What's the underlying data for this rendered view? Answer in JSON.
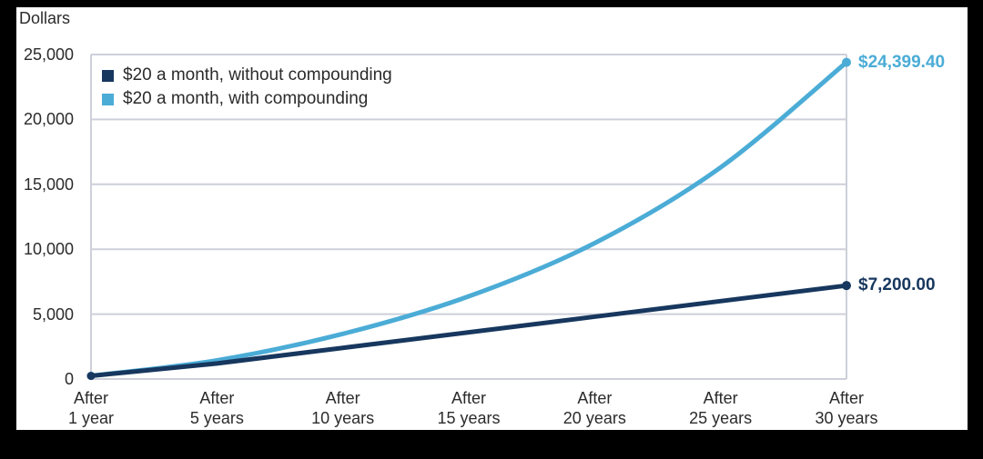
{
  "frame": {
    "background_color": "#000000",
    "panel_background_color": "#ffffff"
  },
  "chart_data": {
    "type": "line",
    "title": "",
    "y_axis_unit_label": "Dollars",
    "xlabel": "",
    "ylabel": "Dollars",
    "ylim": [
      0,
      25000
    ],
    "y_tick_labels": [
      "25,000",
      "20,000",
      "15,000",
      "10,000",
      "5,000",
      "0"
    ],
    "y_tick_values": [
      25000,
      20000,
      15000,
      10000,
      5000,
      0
    ],
    "categories": [
      "After\n1 year",
      "After\n5 years",
      "After\n10 years",
      "After\n15 years",
      "After\n20 years",
      "After\n25 years",
      "After\n30 years"
    ],
    "grid": "horizontal",
    "grid_color": "#cdd0da",
    "axis_text_color": "#2b2b2b",
    "legend_position": "inside-top-left",
    "series": [
      {
        "name": "$20 a month, without compounding",
        "color": "#17375e",
        "values": [
          240,
          1200,
          2400,
          3600,
          4800,
          6000,
          7200
        ],
        "end_label": "$7,200.00",
        "smooth": false
      },
      {
        "name": "$20 a month, with compounding",
        "color": "#4bacd6",
        "values": [
          250,
          1440,
          3480,
          6370,
          10470,
          16300,
          24399.4
        ],
        "end_label": "$24,399.40",
        "smooth": true
      }
    ]
  }
}
